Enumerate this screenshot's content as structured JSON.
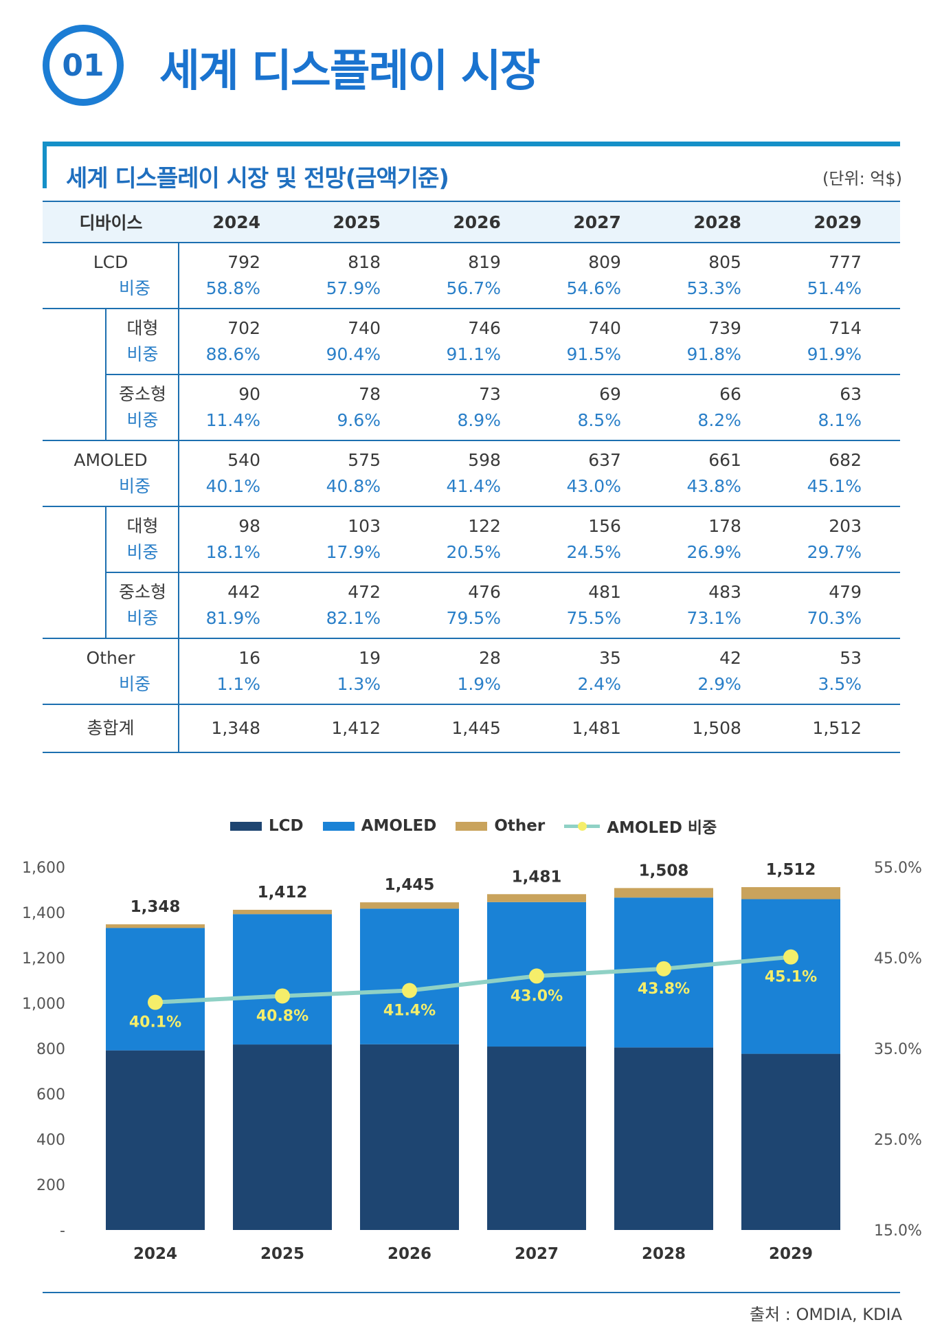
{
  "header": {
    "number": "01",
    "title": "세계 디스플레이 시장"
  },
  "table": {
    "title": "세계 디스플레이 시장 및 전망(금액기준)",
    "unit": "(단위: 억$)",
    "device_header": "디바이스",
    "years": [
      "2024",
      "2025",
      "2026",
      "2027",
      "2028",
      "2029"
    ],
    "share_label": "비중",
    "lcd": {
      "label": "LCD",
      "values": [
        "792",
        "818",
        "819",
        "809",
        "805",
        "777"
      ],
      "shares": [
        "58.8%",
        "57.9%",
        "56.7%",
        "54.6%",
        "53.3%",
        "51.4%"
      ],
      "large": {
        "label": "대형",
        "values": [
          "702",
          "740",
          "746",
          "740",
          "739",
          "714"
        ],
        "shares": [
          "88.6%",
          "90.4%",
          "91.1%",
          "91.5%",
          "91.8%",
          "91.9%"
        ]
      },
      "small": {
        "label": "중소형",
        "values": [
          "90",
          "78",
          "73",
          "69",
          "66",
          "63"
        ],
        "shares": [
          "11.4%",
          "9.6%",
          "8.9%",
          "8.5%",
          "8.2%",
          "8.1%"
        ]
      }
    },
    "amoled": {
      "label": "AMOLED",
      "values": [
        "540",
        "575",
        "598",
        "637",
        "661",
        "682"
      ],
      "shares": [
        "40.1%",
        "40.8%",
        "41.4%",
        "43.0%",
        "43.8%",
        "45.1%"
      ],
      "large": {
        "label": "대형",
        "values": [
          "98",
          "103",
          "122",
          "156",
          "178",
          "203"
        ],
        "shares": [
          "18.1%",
          "17.9%",
          "20.5%",
          "24.5%",
          "26.9%",
          "29.7%"
        ]
      },
      "small": {
        "label": "중소형",
        "values": [
          "442",
          "472",
          "476",
          "481",
          "483",
          "479"
        ],
        "shares": [
          "81.9%",
          "82.1%",
          "79.5%",
          "75.5%",
          "73.1%",
          "70.3%"
        ]
      }
    },
    "other": {
      "label": "Other",
      "values": [
        "16",
        "19",
        "28",
        "35",
        "42",
        "53"
      ],
      "shares": [
        "1.1%",
        "1.3%",
        "1.9%",
        "2.4%",
        "2.9%",
        "3.5%"
      ]
    },
    "total": {
      "label": "총합계",
      "values": [
        "1,348",
        "1,412",
        "1,445",
        "1,481",
        "1,508",
        "1,512"
      ]
    }
  },
  "chart_data": {
    "type": "bar",
    "stacked": true,
    "categories": [
      "2024",
      "2025",
      "2026",
      "2027",
      "2028",
      "2029"
    ],
    "series": [
      {
        "name": "LCD",
        "values": [
          792,
          818,
          819,
          809,
          805,
          777
        ],
        "color": "#1e4571"
      },
      {
        "name": "AMOLED",
        "values": [
          540,
          575,
          598,
          637,
          661,
          682
        ],
        "color": "#1a82d6"
      },
      {
        "name": "Other",
        "values": [
          16,
          19,
          28,
          35,
          42,
          53
        ],
        "color": "#c9a35c"
      }
    ],
    "line": {
      "name": "AMOLED 비중",
      "values": [
        40.1,
        40.8,
        41.4,
        43.0,
        43.8,
        45.1
      ],
      "labels": [
        "40.1%",
        "40.8%",
        "41.4%",
        "43.0%",
        "43.8%",
        "45.1%"
      ],
      "line_color": "#8fd1c5",
      "marker_color": "#f5ee6a"
    },
    "totals": [
      "1,348",
      "1,412",
      "1,445",
      "1,481",
      "1,508",
      "1,512"
    ],
    "ylim": [
      0,
      1600
    ],
    "y_ticks": [
      "-",
      "200",
      "400",
      "600",
      "800",
      "1,000",
      "1,200",
      "1,400",
      "1,600"
    ],
    "y2lim": [
      15,
      55
    ],
    "y2_ticks": [
      "15.0%",
      "25.0%",
      "35.0%",
      "45.0%",
      "55.0%"
    ],
    "legend_position": "top"
  },
  "legend": {
    "lcd": "LCD",
    "amoled": "AMOLED",
    "other": "Other",
    "share": "AMOLED 비중"
  },
  "source": "출처 : OMDIA, KDIA"
}
